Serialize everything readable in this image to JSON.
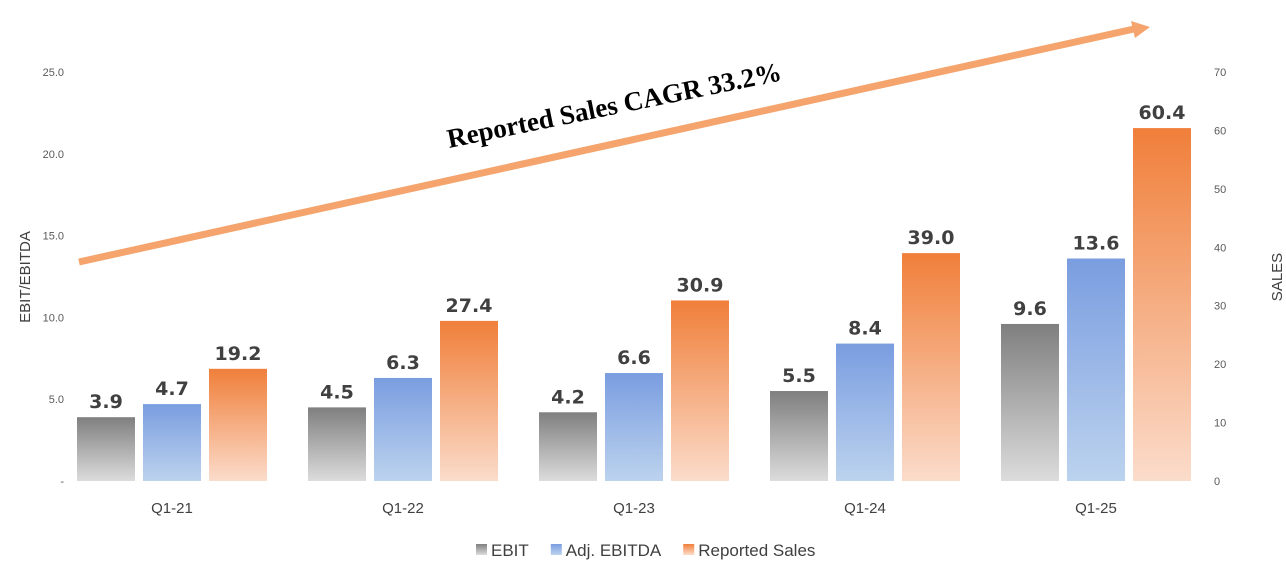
{
  "chart_data": {
    "type": "bar",
    "categories": [
      "Q1-21",
      "Q1-22",
      "Q1-23",
      "Q1-24",
      "Q1-25"
    ],
    "series": [
      {
        "name": "EBIT",
        "axis": "left",
        "values": [
          3.9,
          4.5,
          4.2,
          5.5,
          9.6
        ],
        "labels": [
          "3.9",
          "4.5",
          "4.2",
          "5.5",
          "9.6"
        ],
        "color_top": "#7f7f7f",
        "color_bottom": "#dcdcdc"
      },
      {
        "name": "Adj. EBITDA",
        "axis": "left",
        "values": [
          4.7,
          6.3,
          6.6,
          8.4,
          13.6
        ],
        "labels": [
          "4.7",
          "6.3",
          "6.6",
          "8.4",
          "13.6"
        ],
        "color_top": "#7a9de0",
        "color_bottom": "#bcd3ee"
      },
      {
        "name": "Reported Sales",
        "axis": "right",
        "values": [
          19.2,
          27.4,
          30.9,
          39.0,
          60.4
        ],
        "labels": [
          "19.2",
          "27.4",
          "30.9",
          "39.0",
          "60.4"
        ],
        "color_top": "#f07f3a",
        "color_bottom": "#fbdccb"
      }
    ],
    "ylabel": "EBIT/EBITDA",
    "ylabel_right": "SALES",
    "ylim": [
      0,
      25
    ],
    "ylim_right": [
      0,
      70
    ],
    "y_ticks": [
      0,
      5,
      10,
      15,
      20,
      25
    ],
    "y_tick_labels": [
      "-",
      "5.0",
      "10.0",
      "15.0",
      "20.0",
      "25.0"
    ],
    "y_right_ticks": [
      0,
      10,
      20,
      30,
      40,
      50,
      60,
      70
    ],
    "y_right_tick_labels": [
      "0",
      "10",
      "20",
      "30",
      "40",
      "50",
      "60",
      "70"
    ],
    "annotation": "Reported  Sales CAGR 33.2%",
    "arrow_color": "#f4a46c",
    "legend_position": "bottom",
    "grid": false
  }
}
